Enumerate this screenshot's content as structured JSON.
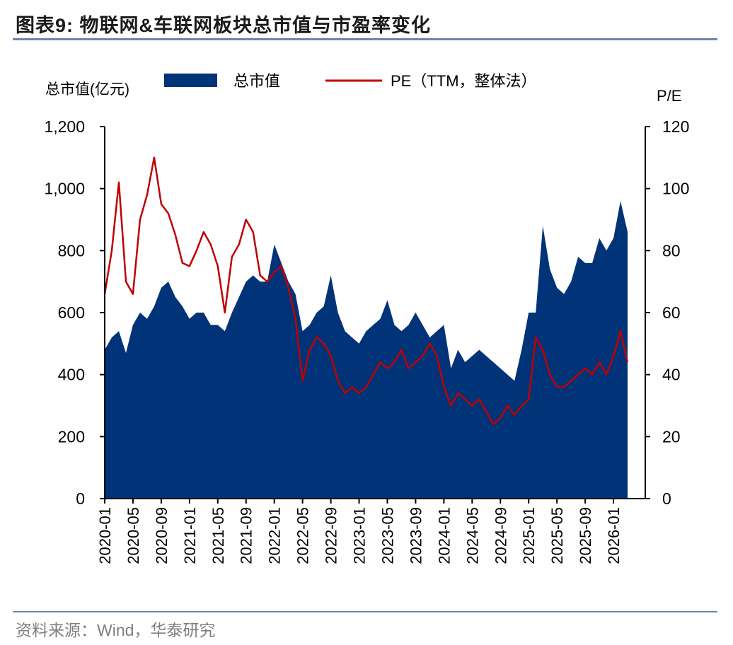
{
  "header": {
    "title": "图表9:  物联网&车联网板块总市值与市盈率变化"
  },
  "footer": {
    "source": "资料来源：Wind，华泰研究"
  },
  "chart_data": {
    "type": "area",
    "left_axis_label": "总市值(亿元)",
    "right_axis_label": "P/E",
    "y_left_lim": [
      0,
      1200
    ],
    "y_left_ticks": [
      "0",
      "200",
      "400",
      "600",
      "800",
      "1,000",
      "1,200"
    ],
    "y_right_lim": [
      0,
      120
    ],
    "y_right_ticks": [
      "0",
      "20",
      "40",
      "60",
      "80",
      "100",
      "120"
    ],
    "x_ticks": [
      "2020-01",
      "2020-05",
      "2020-09",
      "2021-01",
      "2021-05",
      "2021-09",
      "2022-01",
      "2022-05",
      "2022-09",
      "2023-01",
      "2023-05",
      "2023-09",
      "2024-01",
      "2024-05",
      "2024-09",
      "2025-01",
      "2025-05",
      "2025-09",
      "2026-01"
    ],
    "legend_position": "top",
    "grid": false,
    "colors": {
      "market_cap": "#003378",
      "pe": "#c00000"
    },
    "series": [
      {
        "name": "总市值",
        "kind": "area",
        "axis": "left",
        "x": [
          "2020-01",
          "2020-02",
          "2020-03",
          "2020-04",
          "2020-05",
          "2020-06",
          "2020-07",
          "2020-08",
          "2020-09",
          "2020-10",
          "2020-11",
          "2020-12",
          "2021-01",
          "2021-02",
          "2021-03",
          "2021-04",
          "2021-05",
          "2021-06",
          "2021-07",
          "2021-08",
          "2021-09",
          "2021-10",
          "2021-11",
          "2021-12",
          "2022-01",
          "2022-02",
          "2022-03",
          "2022-04",
          "2022-05",
          "2022-06",
          "2022-07",
          "2022-08",
          "2022-09",
          "2022-10",
          "2022-11",
          "2022-12",
          "2023-01",
          "2023-02",
          "2023-03",
          "2023-04",
          "2023-05",
          "2023-06",
          "2023-07",
          "2023-08",
          "2023-09",
          "2023-10",
          "2023-11",
          "2023-12",
          "2024-01",
          "2024-02",
          "2024-03",
          "2024-04",
          "2024-05",
          "2024-06",
          "2024-07",
          "2024-08",
          "2024-09",
          "2024-10",
          "2024-11",
          "2024-12",
          "2025-01",
          "2025-02",
          "2025-03",
          "2025-04",
          "2025-05",
          "2025-06",
          "2025-07",
          "2025-08",
          "2025-09",
          "2025-10",
          "2025-11",
          "2025-12",
          "2026-01",
          "2026-02",
          "2026-03"
        ],
        "values": [
          480,
          520,
          540,
          470,
          560,
          600,
          580,
          620,
          680,
          700,
          650,
          620,
          580,
          600,
          600,
          560,
          560,
          540,
          600,
          650,
          700,
          720,
          700,
          700,
          820,
          760,
          700,
          660,
          540,
          560,
          600,
          620,
          720,
          600,
          540,
          520,
          500,
          540,
          560,
          580,
          640,
          560,
          540,
          560,
          600,
          560,
          520,
          540,
          560,
          420,
          480,
          440,
          460,
          480,
          460,
          440,
          420,
          400,
          380,
          480,
          600,
          600,
          880,
          740,
          680,
          660,
          700,
          780,
          760,
          760,
          840,
          800,
          840,
          960,
          860
        ]
      },
      {
        "name": "PE（TTM，整体法）",
        "kind": "line",
        "axis": "right",
        "x": [
          "2020-01",
          "2020-02",
          "2020-03",
          "2020-04",
          "2020-05",
          "2020-06",
          "2020-07",
          "2020-08",
          "2020-09",
          "2020-10",
          "2020-11",
          "2020-12",
          "2021-01",
          "2021-02",
          "2021-03",
          "2021-04",
          "2021-05",
          "2021-06",
          "2021-07",
          "2021-08",
          "2021-09",
          "2021-10",
          "2021-11",
          "2021-12",
          "2022-01",
          "2022-02",
          "2022-03",
          "2022-04",
          "2022-05",
          "2022-06",
          "2022-07",
          "2022-08",
          "2022-09",
          "2022-10",
          "2022-11",
          "2022-12",
          "2023-01",
          "2023-02",
          "2023-03",
          "2023-04",
          "2023-05",
          "2023-06",
          "2023-07",
          "2023-08",
          "2023-09",
          "2023-10",
          "2023-11",
          "2023-12",
          "2024-01",
          "2024-02",
          "2024-03",
          "2024-04",
          "2024-05",
          "2024-06",
          "2024-07",
          "2024-08",
          "2024-09",
          "2024-10",
          "2024-11",
          "2024-12",
          "2025-01",
          "2025-02",
          "2025-03",
          "2025-04",
          "2025-05",
          "2025-06",
          "2025-07",
          "2025-08",
          "2025-09",
          "2025-10",
          "2025-11",
          "2025-12",
          "2026-01",
          "2026-02",
          "2026-03"
        ],
        "values": [
          66,
          80,
          102,
          70,
          66,
          90,
          98,
          110,
          95,
          92,
          85,
          76,
          75,
          80,
          86,
          82,
          75,
          60,
          78,
          82,
          90,
          86,
          72,
          70,
          73,
          75,
          68,
          58,
          38,
          48,
          52,
          50,
          46,
          38,
          34,
          36,
          34,
          36,
          40,
          44,
          42,
          44,
          48,
          42,
          44,
          46,
          50,
          46,
          36,
          30,
          34,
          32,
          30,
          32,
          28,
          24,
          26,
          30,
          27,
          30,
          32,
          52,
          48,
          40,
          36,
          36,
          38,
          40,
          42,
          40,
          44,
          40,
          46,
          54,
          44
        ]
      }
    ]
  }
}
